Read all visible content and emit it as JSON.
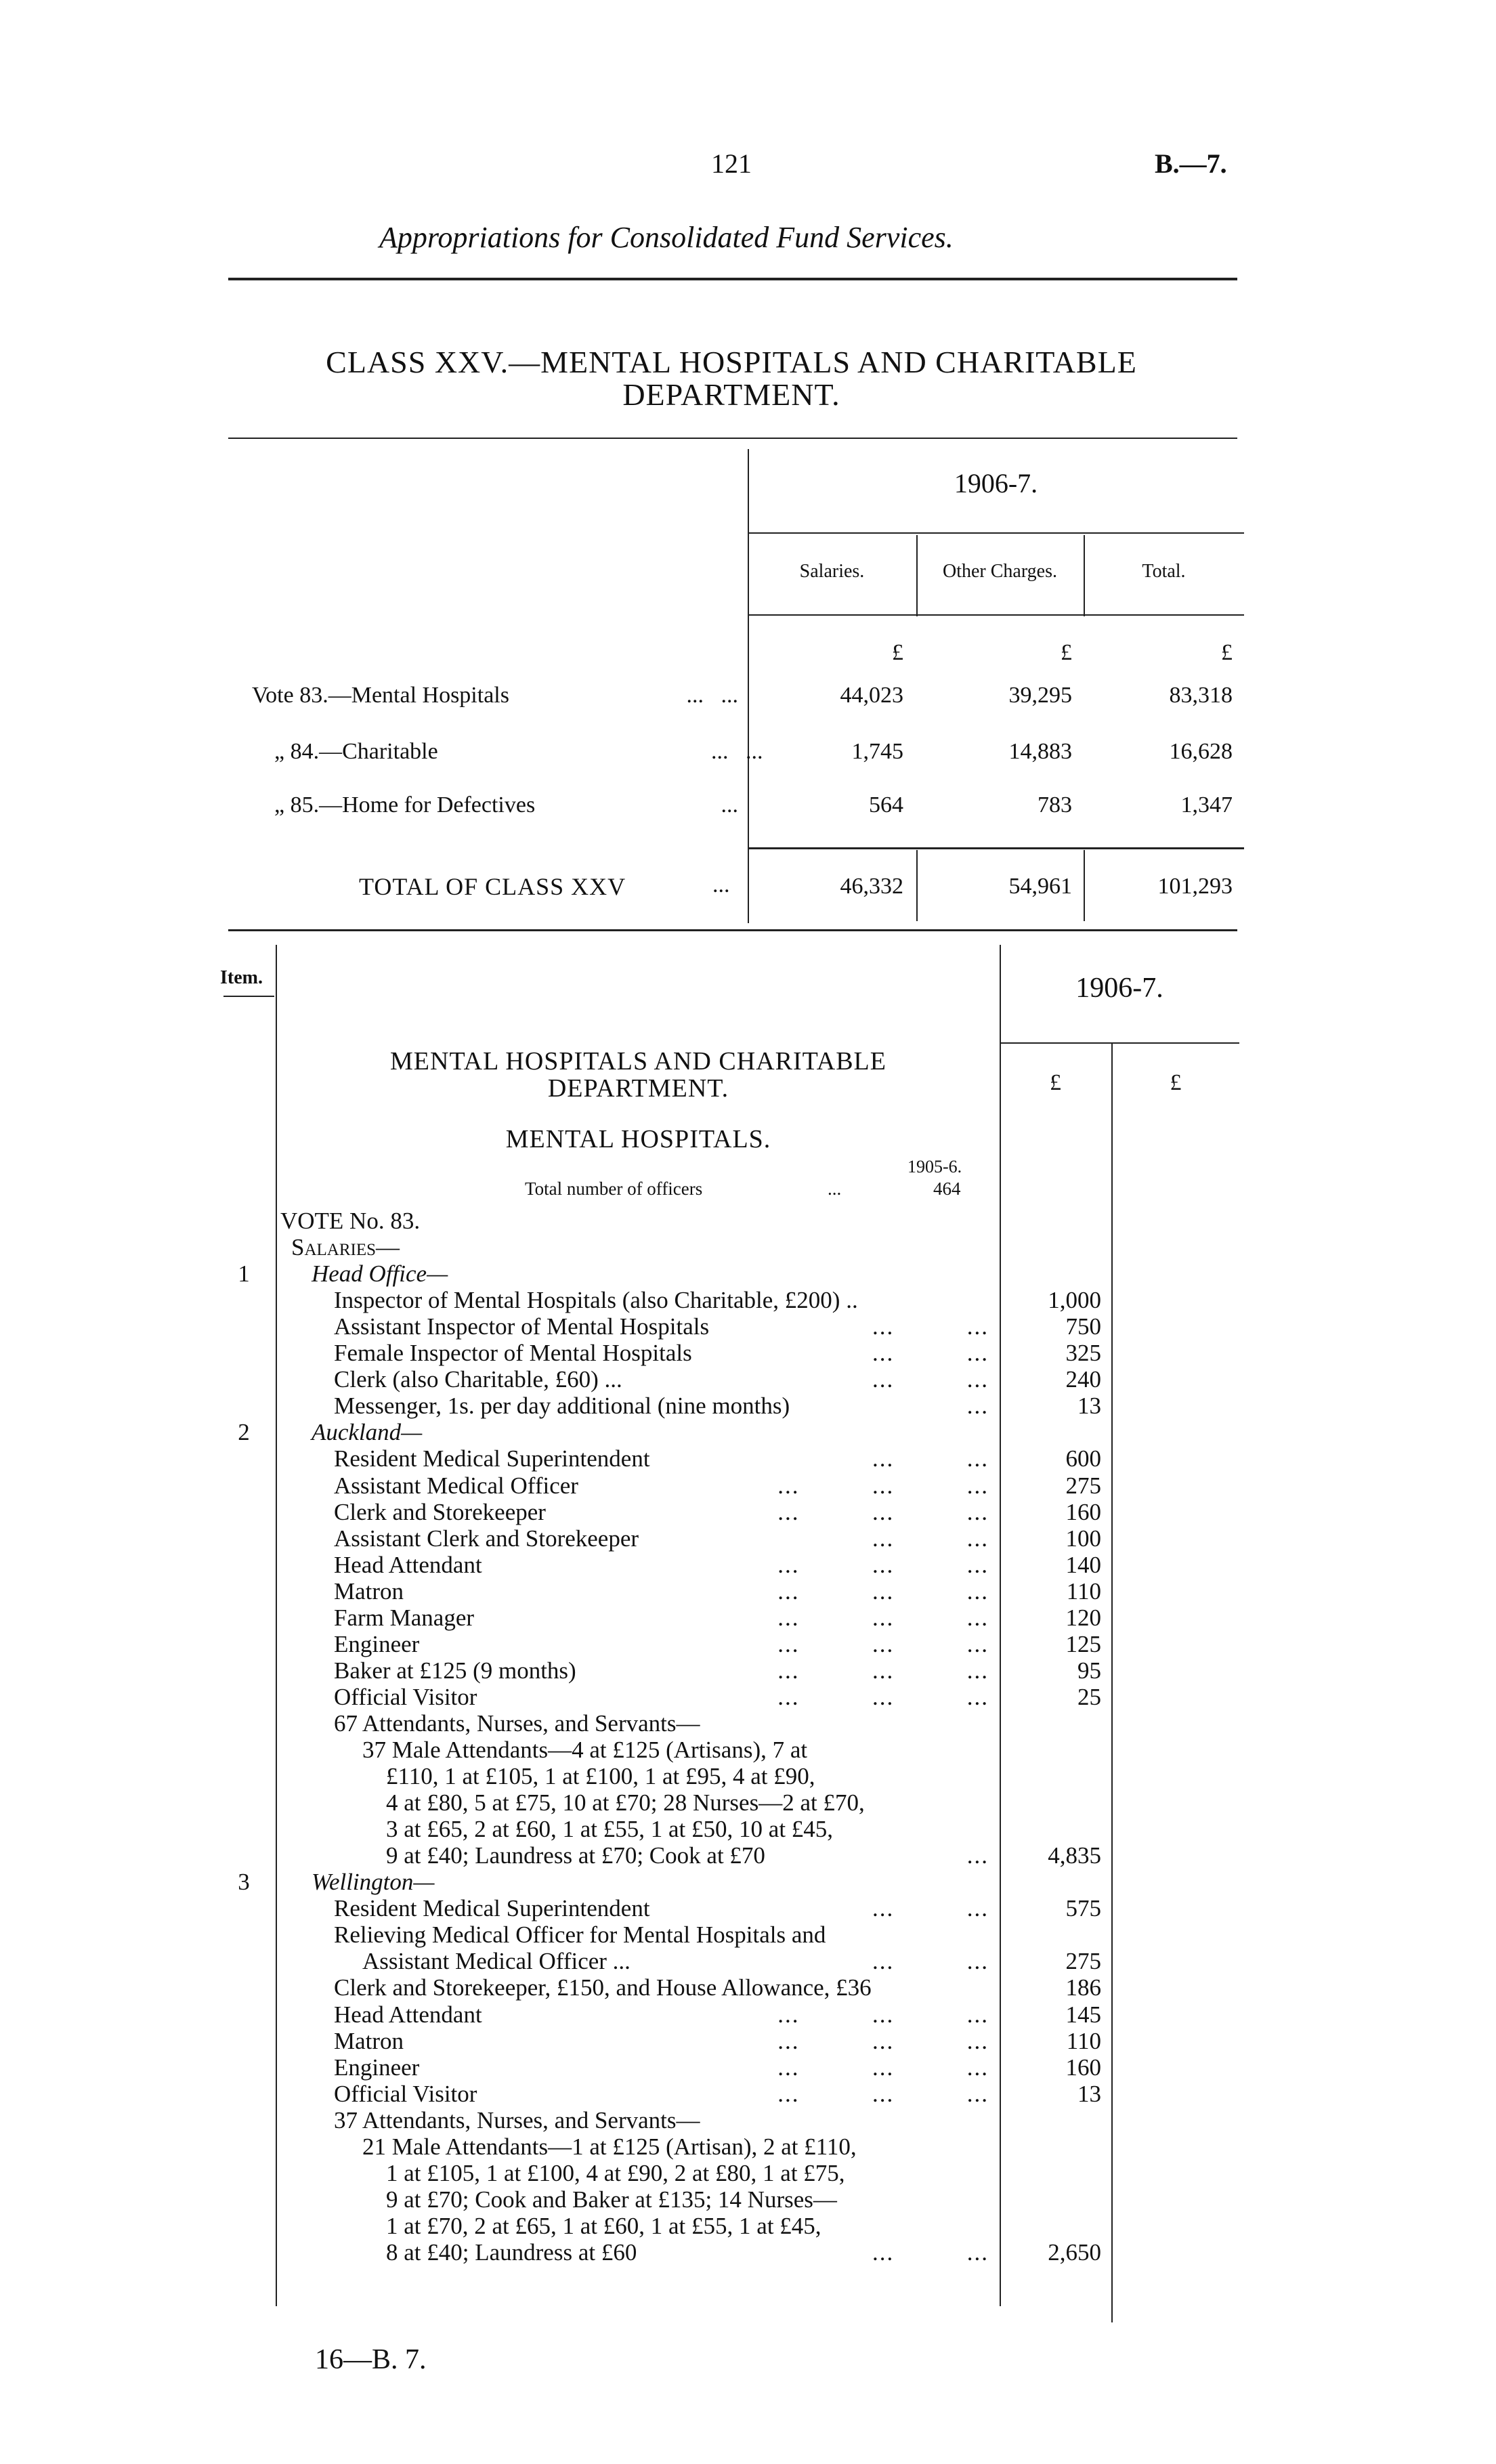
{
  "header": {
    "page_number": "121",
    "doc_ref": "B.—7.",
    "subtitle": "Appropriations for Consolidated Fund Services."
  },
  "class_title": {
    "line1": "CLASS XXV.—MENTAL HOSPITALS AND CHARITABLE",
    "line2": "DEPARTMENT."
  },
  "summary": {
    "year": "1906-7.",
    "columns": [
      "Salaries.",
      "Other Charges.",
      "Total."
    ],
    "currency": [
      "£",
      "£",
      "£"
    ],
    "rows": [
      {
        "label": "Vote 83.—Mental Hospitals",
        "leader": "...   ...",
        "values": [
          "44,023",
          "39,295",
          "83,318"
        ]
      },
      {
        "label": "„  84.—Charitable",
        "leader": "...   ...",
        "values": [
          "1,745",
          "14,883",
          "16,628"
        ]
      },
      {
        "label": "„  85.—Home for Defectives",
        "leader": "...",
        "values": [
          "564",
          "783",
          "1,347"
        ]
      }
    ],
    "total": {
      "label": "TOTAL OF CLASS XXV",
      "leader": "...",
      "values": [
        "46,332",
        "54,961",
        "101,293"
      ]
    }
  },
  "detail": {
    "item_header": "Item.",
    "year": "1906-7.",
    "currency": [
      "£",
      "£"
    ],
    "dept_title1": "MENTAL HOSPITALS AND CHARITABLE",
    "dept_title2": "DEPARTMENT.",
    "section_title": "MENTAL HOSPITALS.",
    "prev_year": "1905-6.",
    "officers_label": "Total number of officers",
    "officers_leader": "...",
    "officers_count": "464",
    "lines": [
      {
        "item": "",
        "text": "VOTE No. 83.",
        "indent": 0,
        "leader": "",
        "amount": ""
      },
      {
        "item": "",
        "text": "Salaries—",
        "indent": 1,
        "style": "sc",
        "leader": "",
        "amount": ""
      },
      {
        "item": "1",
        "text": "Head Office—",
        "indent": 2,
        "style": "it",
        "leader": "",
        "amount": ""
      },
      {
        "item": "",
        "text": "Inspector of Mental Hospitals (also Charitable, £200) ..",
        "indent": 3,
        "leader": "",
        "amount": "1,000"
      },
      {
        "item": "",
        "text": "Assistant Inspector of Mental Hospitals",
        "indent": 3,
        "leader": "...          ...",
        "amount": "750"
      },
      {
        "item": "",
        "text": "Female Inspector of Mental Hospitals",
        "indent": 3,
        "leader": "...          ...",
        "amount": "325"
      },
      {
        "item": "",
        "text": "Clerk (also Charitable, £60)  ...",
        "indent": 3,
        "leader": "...          ...",
        "amount": "240"
      },
      {
        "item": "",
        "text": "Messenger, 1s. per day additional (nine months)",
        "indent": 3,
        "leader": "...",
        "amount": "13"
      },
      {
        "item": "2",
        "text": "Auckland—",
        "indent": 2,
        "style": "it",
        "leader": "",
        "amount": ""
      },
      {
        "item": "",
        "text": "Resident Medical Superintendent",
        "indent": 3,
        "leader": "...          ...",
        "amount": "600"
      },
      {
        "item": "",
        "text": "Assistant Medical Officer",
        "indent": 3,
        "leader": "...          ...          ...",
        "amount": "275"
      },
      {
        "item": "",
        "text": "Clerk and Storekeeper",
        "indent": 3,
        "leader": "...          ...          ...",
        "amount": "160"
      },
      {
        "item": "",
        "text": "Assistant Clerk and Storekeeper",
        "indent": 3,
        "leader": "...          ...",
        "amount": "100"
      },
      {
        "item": "",
        "text": "Head Attendant",
        "indent": 3,
        "leader": "...          ...          ...",
        "amount": "140"
      },
      {
        "item": "",
        "text": "Matron",
        "indent": 3,
        "leader": "...          ...          ...",
        "amount": "110"
      },
      {
        "item": "",
        "text": "Farm Manager",
        "indent": 3,
        "leader": "...          ...          ...",
        "amount": "120"
      },
      {
        "item": "",
        "text": "Engineer",
        "indent": 3,
        "leader": "...          ...          ...",
        "amount": "125"
      },
      {
        "item": "",
        "text": "Baker at £125 (9 months)",
        "indent": 3,
        "leader": "...          ...          ...",
        "amount": "95"
      },
      {
        "item": "",
        "text": "Official Visitor",
        "indent": 3,
        "leader": "...          ...          ...",
        "amount": "25"
      },
      {
        "item": "",
        "text": "67 Attendants, Nurses, and Servants—",
        "indent": 3,
        "leader": "",
        "amount": ""
      },
      {
        "item": "",
        "text": "37 Male Attendants—4 at £125 (Artisans), 7 at",
        "indent": 4,
        "leader": "",
        "amount": ""
      },
      {
        "item": "",
        "text": "£110, 1 at £105, 1 at £100, 1 at £95, 4 at £90,",
        "indent": 5,
        "leader": "",
        "amount": ""
      },
      {
        "item": "",
        "text": "4 at £80, 5 at £75, 10 at £70; 28 Nurses—2 at £70,",
        "indent": 5,
        "leader": "",
        "amount": ""
      },
      {
        "item": "",
        "text": "3 at £65, 2 at £60, 1 at £55, 1 at £50, 10 at £45,",
        "indent": 5,
        "leader": "",
        "amount": ""
      },
      {
        "item": "",
        "text": "9 at £40; Laundress at £70; Cook at £70",
        "indent": 5,
        "leader": "...",
        "amount": "4,835"
      },
      {
        "item": "3",
        "text": "Wellington—",
        "indent": 2,
        "style": "it",
        "leader": "",
        "amount": ""
      },
      {
        "item": "",
        "text": "Resident Medical Superintendent",
        "indent": 3,
        "leader": "...          ...",
        "amount": "575"
      },
      {
        "item": "",
        "text": "Relieving Medical Officer for Mental Hospitals and",
        "indent": 3,
        "leader": "",
        "amount": ""
      },
      {
        "item": "",
        "text": "Assistant Medical Officer   ...",
        "indent": 4,
        "leader": "...          ...",
        "amount": "275"
      },
      {
        "item": "",
        "text": "Clerk and Storekeeper, £150, and House Allowance, £36",
        "indent": 3,
        "leader": "",
        "amount": "186"
      },
      {
        "item": "",
        "text": "Head Attendant",
        "indent": 3,
        "leader": "...          ...          ...",
        "amount": "145"
      },
      {
        "item": "",
        "text": "Matron",
        "indent": 3,
        "leader": "...          ...          ...",
        "amount": "110"
      },
      {
        "item": "",
        "text": "Engineer",
        "indent": 3,
        "leader": "...          ...          ...",
        "amount": "160"
      },
      {
        "item": "",
        "text": "Official Visitor",
        "indent": 3,
        "leader": "...          ...          ...",
        "amount": "13"
      },
      {
        "item": "",
        "text": "37 Attendants, Nurses, and Servants—",
        "indent": 3,
        "leader": "",
        "amount": ""
      },
      {
        "item": "",
        "text": "21 Male Attendants—1 at £125 (Artisan), 2 at £110,",
        "indent": 4,
        "leader": "",
        "amount": ""
      },
      {
        "item": "",
        "text": "1 at £105, 1 at £100, 4 at £90, 2 at £80, 1 at £75,",
        "indent": 5,
        "leader": "",
        "amount": ""
      },
      {
        "item": "",
        "text": "9 at £70; Cook and Baker at £135; 14 Nurses—",
        "indent": 5,
        "leader": "",
        "amount": ""
      },
      {
        "item": "",
        "text": "1 at £70, 2 at £65, 1 at £60, 1 at £55, 1 at £45,",
        "indent": 5,
        "leader": "",
        "amount": ""
      },
      {
        "item": "",
        "text": "8 at £40; Laundress at £60",
        "indent": 5,
        "leader": "...          ...",
        "amount": "2,650"
      }
    ]
  },
  "footer": {
    "signature": "16—B. 7."
  }
}
